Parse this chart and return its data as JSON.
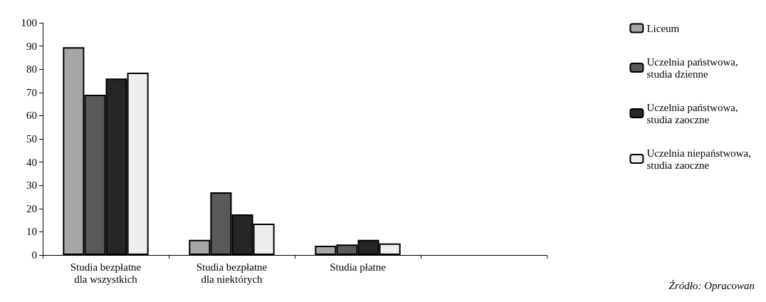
{
  "chart_data": {
    "type": "bar",
    "categories": [
      "Studia bezpłatne\ndla wszystkich",
      "Studia bezpłatne\ndla niektórych",
      "Studia płatne",
      null
    ],
    "series": [
      {
        "name": "Liceum",
        "color": "#a6a6a6",
        "values": [
          89.5,
          6.5,
          4,
          null
        ]
      },
      {
        "name": "Uczelnia państwowa,\nstudia dzienne",
        "color": "#595959",
        "values": [
          69,
          27,
          4.5,
          null
        ]
      },
      {
        "name": "Uczelnia państwowa,\nstudia zaoczne",
        "color": "#262626",
        "values": [
          76,
          17.5,
          6.5,
          null
        ]
      },
      {
        "name": "Uczelnia niepaństwowa,\nstudia zaoczne",
        "color": "#eeeeee",
        "values": [
          78.5,
          13.5,
          5,
          null
        ]
      }
    ],
    "ylim": [
      0,
      100
    ],
    "yticks": [
      0,
      10,
      20,
      30,
      40,
      50,
      60,
      70,
      80,
      90,
      100
    ],
    "grid": false,
    "legend": "right",
    "annotations": [
      "Źródło: Opracowan"
    ]
  }
}
